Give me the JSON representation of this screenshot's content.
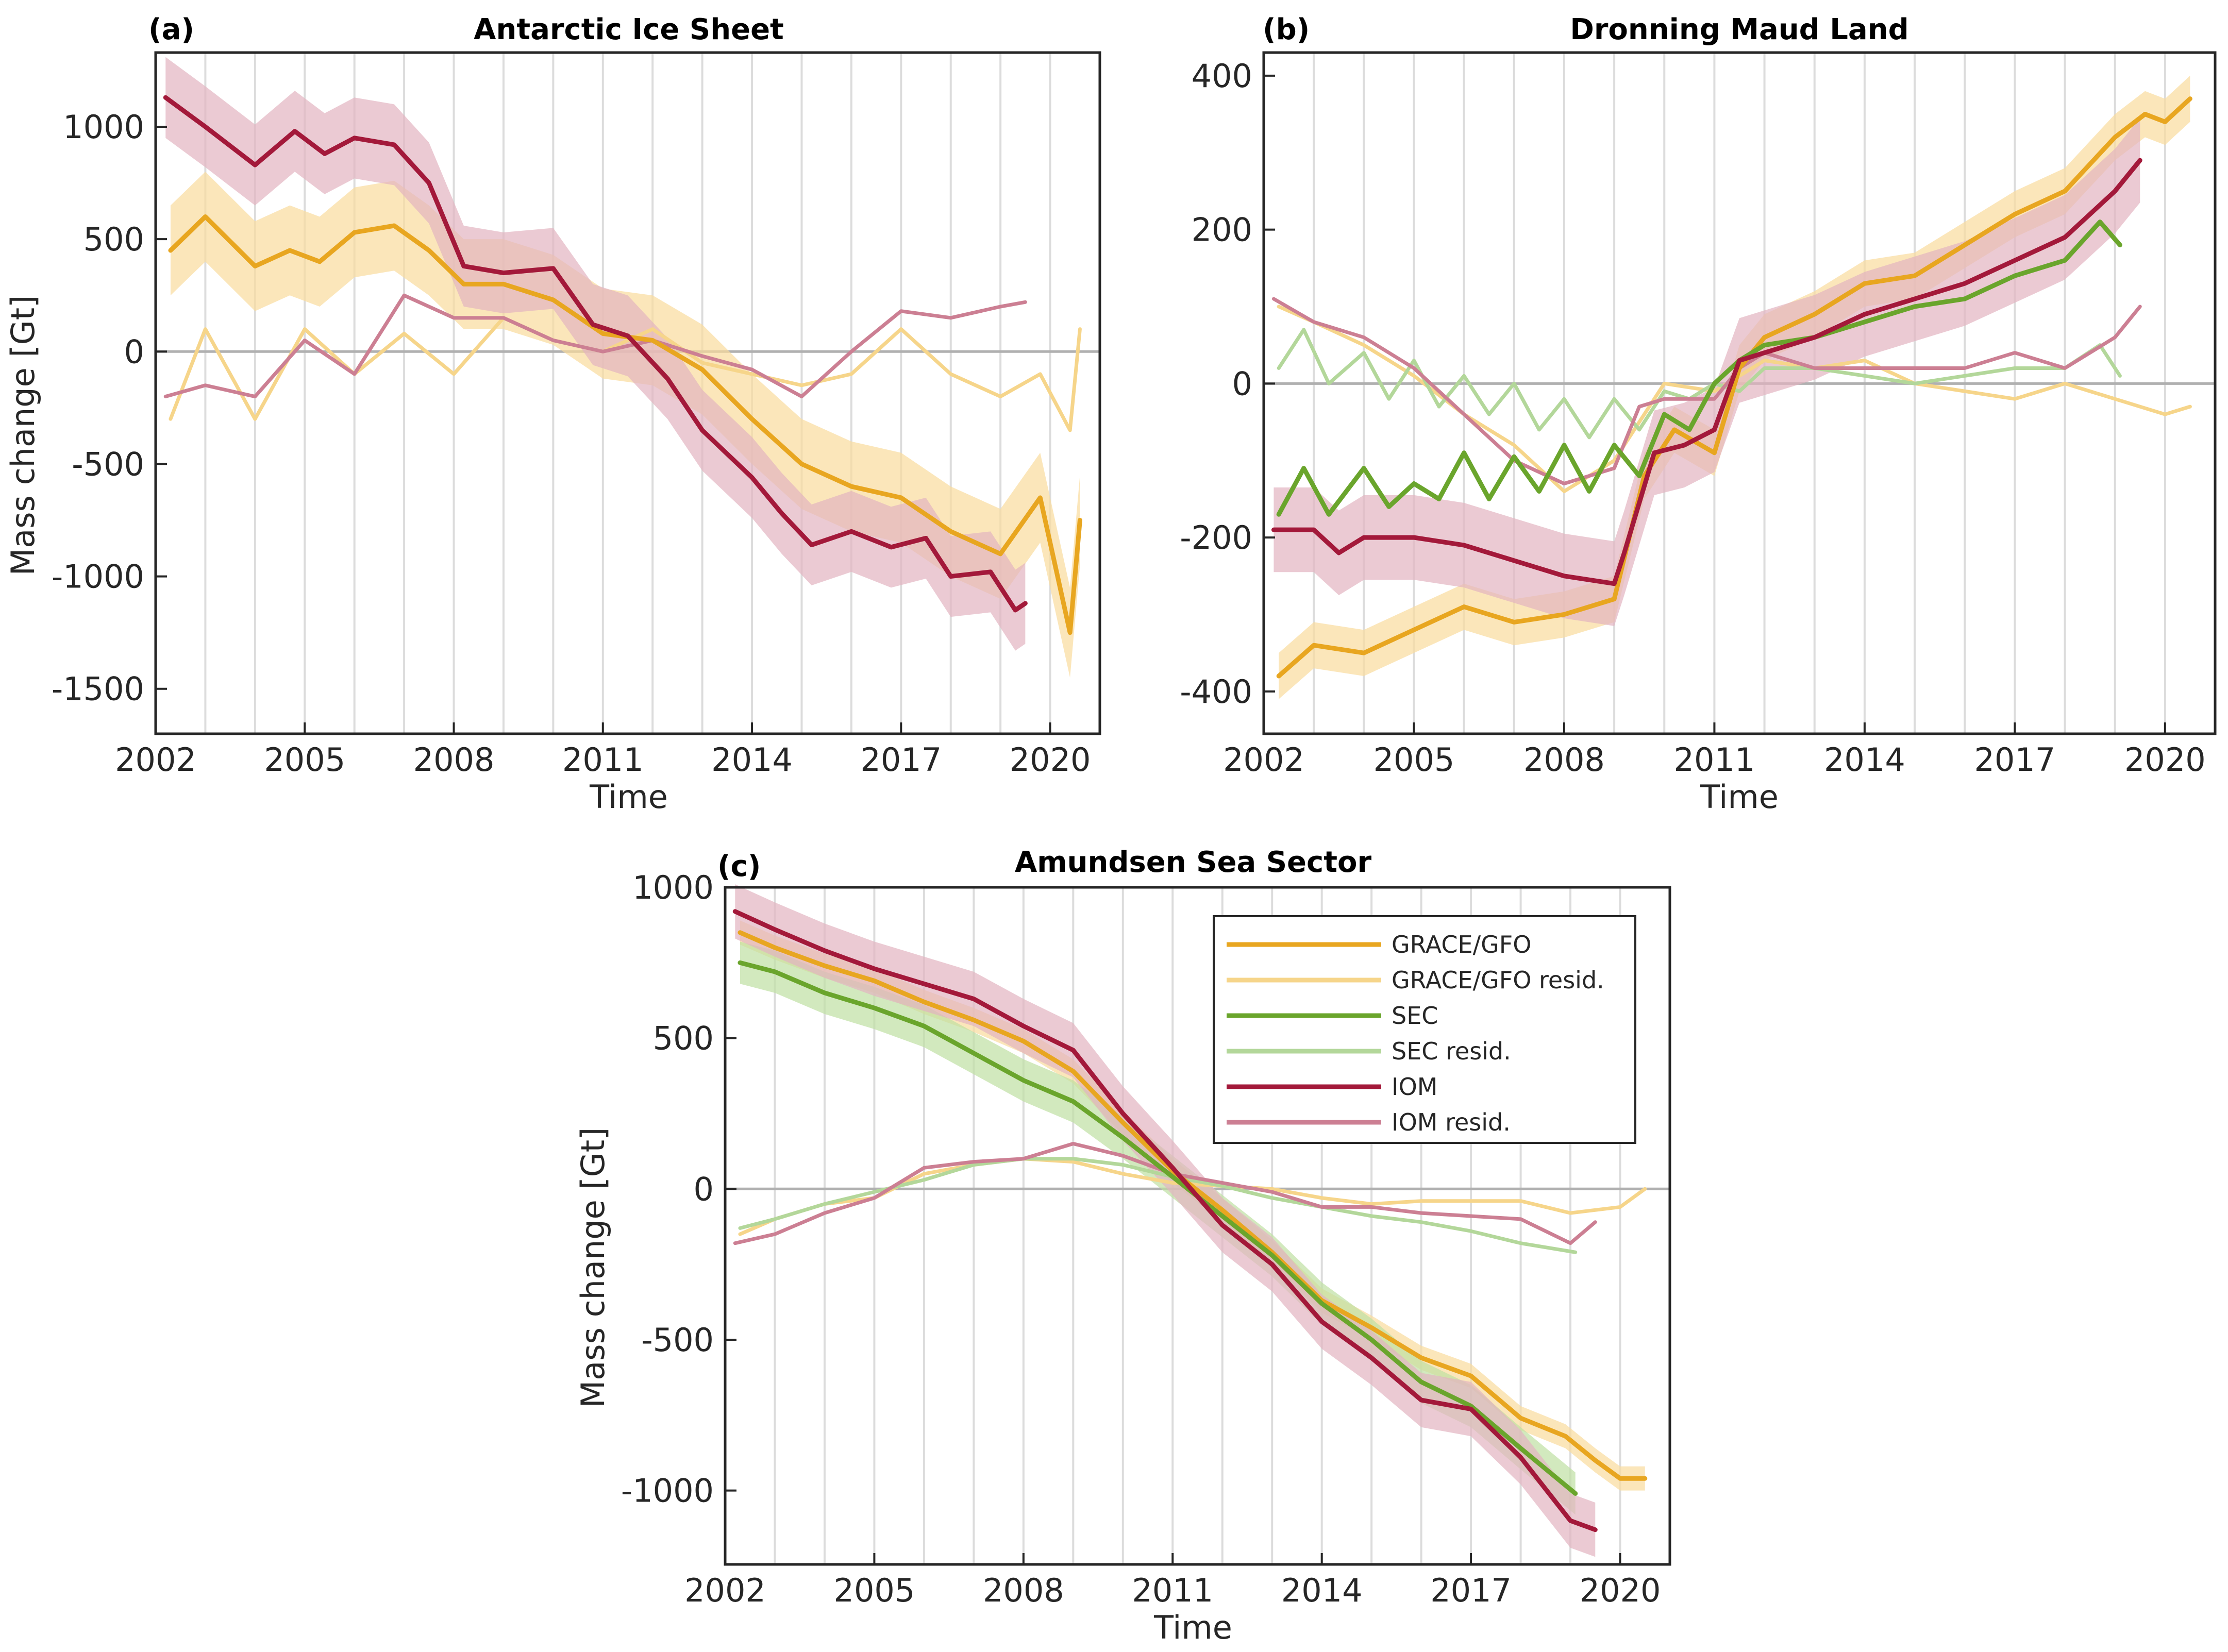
{
  "colors": {
    "grace": "#e8a620",
    "grace_resid": "#f6d58a",
    "grace_band": "#f9dc9c",
    "sec": "#6aa52c",
    "sec_resid": "#b3d79a",
    "sec_band": "#bfe0a3",
    "iom": "#a3193a",
    "iom_resid": "#cc7f93",
    "iom_band": "#e2b3c1",
    "zero": "#b0b0b0",
    "vgrid": "#dcdcdc",
    "axis": "#262626"
  },
  "chart_data": [
    {
      "id": "a",
      "type": "line",
      "tag": "(a)",
      "title": "Antarctic Ice Sheet",
      "xlabel": "Time",
      "ylabel": "Mass change [Gt]",
      "xlim": [
        2002,
        2021
      ],
      "ylim": [
        -1700,
        1330
      ],
      "xticks": [
        2002,
        2005,
        2008,
        2011,
        2014,
        2017,
        2020
      ],
      "yticks": [
        1000,
        500,
        0,
        -500,
        -1000,
        -1500
      ],
      "grid": "vertical",
      "series": [
        {
          "name": "GRACE/GFO",
          "color_key": "grace",
          "band": 200,
          "band_color_key": "grace_band",
          "x": [
            2002.3,
            2003,
            2004,
            2004.7,
            2005.3,
            2006,
            2006.8,
            2007.5,
            2008.2,
            2009,
            2010,
            2011,
            2012,
            2013,
            2014,
            2015,
            2016,
            2017,
            2018,
            2019,
            2019.8,
            2020.4,
            2020.6
          ],
          "y": [
            450,
            600,
            380,
            450,
            400,
            530,
            560,
            450,
            300,
            300,
            230,
            80,
            50,
            -80,
            -300,
            -500,
            -600,
            -650,
            -800,
            -900,
            -650,
            -1250,
            -750
          ]
        },
        {
          "name": "GRACE/GFO resid.",
          "color_key": "grace_resid",
          "x": [
            2002.3,
            2003,
            2004,
            2005,
            2006,
            2007,
            2008,
            2009,
            2010,
            2011,
            2012,
            2013,
            2014,
            2015,
            2016,
            2017,
            2018,
            2019,
            2019.8,
            2020.4,
            2020.6
          ],
          "y": [
            -300,
            100,
            -300,
            100,
            -100,
            80,
            -100,
            150,
            50,
            0,
            100,
            -50,
            -100,
            -150,
            -100,
            100,
            -100,
            -200,
            -100,
            -350,
            100
          ]
        },
        {
          "name": "IOM",
          "color_key": "iom",
          "band": 180,
          "band_color_key": "iom_band",
          "x": [
            2002.2,
            2003,
            2004,
            2004.8,
            2005.4,
            2006,
            2006.8,
            2007.5,
            2008.2,
            2009,
            2010,
            2010.8,
            2011.5,
            2012.3,
            2013,
            2014,
            2014.6,
            2015.2,
            2016,
            2016.8,
            2017.5,
            2018,
            2018.8,
            2019.3,
            2019.5
          ],
          "y": [
            1130,
            1000,
            830,
            980,
            880,
            950,
            920,
            750,
            380,
            350,
            370,
            120,
            70,
            -120,
            -350,
            -560,
            -720,
            -860,
            -800,
            -870,
            -830,
            -1000,
            -980,
            -1150,
            -1120
          ]
        },
        {
          "name": "IOM resid.",
          "color_key": "iom_resid",
          "x": [
            2002.2,
            2003,
            2004,
            2005,
            2006,
            2007,
            2008,
            2009,
            2010,
            2011,
            2012,
            2013,
            2014,
            2015,
            2016,
            2017,
            2018,
            2019,
            2019.5
          ],
          "y": [
            -200,
            -150,
            -200,
            50,
            -100,
            250,
            150,
            150,
            50,
            0,
            50,
            -20,
            -80,
            -200,
            0,
            180,
            150,
            200,
            220
          ]
        }
      ]
    },
    {
      "id": "b",
      "type": "line",
      "tag": "(b)",
      "title": "Dronning Maud Land",
      "xlabel": "Time",
      "ylabel": "",
      "xlim": [
        2002,
        2021
      ],
      "ylim": [
        -455,
        430
      ],
      "xticks": [
        2002,
        2005,
        2008,
        2011,
        2014,
        2017,
        2020
      ],
      "yticks": [
        400,
        200,
        0,
        -200,
        -400
      ],
      "grid": "vertical",
      "series": [
        {
          "name": "GRACE/GFO",
          "color_key": "grace",
          "band": 30,
          "band_color_key": "grace_band",
          "x": [
            2002.3,
            2003,
            2004,
            2005,
            2006,
            2007,
            2008,
            2009,
            2009.6,
            2010.2,
            2011,
            2011.5,
            2012,
            2013,
            2014,
            2015,
            2016,
            2017,
            2018,
            2019,
            2019.6,
            2020,
            2020.5
          ],
          "y": [
            -380,
            -340,
            -350,
            -320,
            -290,
            -310,
            -300,
            -280,
            -120,
            -60,
            -90,
            20,
            60,
            90,
            130,
            140,
            180,
            220,
            250,
            320,
            350,
            340,
            370
          ]
        },
        {
          "name": "GRACE/GFO resid.",
          "color_key": "grace_resid",
          "x": [
            2002.3,
            2003,
            2004,
            2005,
            2006,
            2007,
            2008,
            2009,
            2010,
            2011,
            2012,
            2013,
            2014,
            2015,
            2016,
            2017,
            2018,
            2019,
            2020,
            2020.5
          ],
          "y": [
            100,
            80,
            50,
            10,
            -40,
            -80,
            -140,
            -100,
            0,
            -10,
            30,
            20,
            30,
            0,
            -10,
            -20,
            0,
            -20,
            -40,
            -30
          ]
        },
        {
          "name": "SEC",
          "color_key": "sec",
          "x": [
            2002.3,
            2002.8,
            2003.3,
            2004,
            2004.5,
            2005,
            2005.5,
            2006,
            2006.5,
            2007,
            2007.5,
            2008,
            2008.5,
            2009,
            2009.5,
            2010,
            2010.5,
            2011,
            2011.5,
            2012,
            2013,
            2014,
            2015,
            2016,
            2017,
            2018,
            2018.7,
            2019.1
          ],
          "y": [
            -170,
            -110,
            -170,
            -110,
            -160,
            -130,
            -150,
            -90,
            -150,
            -95,
            -140,
            -80,
            -140,
            -80,
            -120,
            -40,
            -60,
            0,
            30,
            50,
            60,
            80,
            100,
            110,
            140,
            160,
            210,
            180
          ]
        },
        {
          "name": "SEC resid.",
          "color_key": "sec_resid",
          "x": [
            2002.3,
            2002.8,
            2003.3,
            2004,
            2004.5,
            2005,
            2005.5,
            2006,
            2006.5,
            2007,
            2007.5,
            2008,
            2008.5,
            2009,
            2009.5,
            2010,
            2010.5,
            2011,
            2011.5,
            2012,
            2013,
            2014,
            2015,
            2016,
            2017,
            2018,
            2018.7,
            2019.1
          ],
          "y": [
            20,
            70,
            0,
            40,
            -20,
            30,
            -30,
            10,
            -40,
            0,
            -60,
            -20,
            -70,
            -20,
            -60,
            -10,
            -20,
            0,
            -10,
            20,
            20,
            10,
            0,
            10,
            20,
            20,
            50,
            10
          ]
        },
        {
          "name": "IOM",
          "color_key": "iom",
          "band": 55,
          "band_color_key": "iom_band",
          "x": [
            2002.2,
            2003,
            2003.5,
            2004,
            2005,
            2006,
            2007,
            2008,
            2009,
            2009.2,
            2009.8,
            2010.4,
            2011,
            2011.5,
            2012,
            2013,
            2014,
            2015,
            2016,
            2017,
            2018,
            2019,
            2019.5
          ],
          "y": [
            -190,
            -190,
            -220,
            -200,
            -200,
            -210,
            -230,
            -250,
            -260,
            -220,
            -90,
            -80,
            -60,
            30,
            40,
            60,
            90,
            110,
            130,
            160,
            190,
            250,
            290
          ]
        },
        {
          "name": "IOM resid.",
          "color_key": "iom_resid",
          "x": [
            2002.2,
            2003,
            2004,
            2005,
            2006,
            2007,
            2008,
            2009,
            2009.5,
            2010,
            2010.5,
            2011,
            2011.5,
            2012,
            2013,
            2014,
            2015,
            2016,
            2017,
            2018,
            2019,
            2019.5
          ],
          "y": [
            110,
            80,
            60,
            20,
            -40,
            -100,
            -130,
            -110,
            -30,
            -20,
            -20,
            -20,
            20,
            40,
            20,
            20,
            20,
            20,
            40,
            20,
            60,
            100
          ]
        }
      ]
    },
    {
      "id": "c",
      "type": "line",
      "tag": "(c)",
      "title": "Amundsen Sea Sector",
      "xlabel": "Time",
      "ylabel": "Mass change [Gt]",
      "xlim": [
        2002,
        2021
      ],
      "ylim": [
        -1245,
        1000
      ],
      "xticks": [
        2002,
        2005,
        2008,
        2011,
        2014,
        2017,
        2020
      ],
      "yticks": [
        1000,
        500,
        0,
        -500,
        -1000
      ],
      "grid": "vertical",
      "legend": "top-right",
      "series": [
        {
          "name": "GRACE/GFO",
          "color_key": "grace",
          "band": 40,
          "band_color_key": "grace_band",
          "x": [
            2002.3,
            2003,
            2004,
            2005,
            2006,
            2007,
            2008,
            2009,
            2010,
            2011,
            2012,
            2013,
            2014,
            2015,
            2016,
            2017,
            2018,
            2018.9,
            2019.5,
            2020,
            2020.5
          ],
          "y": [
            850,
            800,
            740,
            690,
            620,
            560,
            490,
            390,
            220,
            60,
            -70,
            -210,
            -370,
            -460,
            -560,
            -620,
            -760,
            -820,
            -900,
            -960,
            -960
          ]
        },
        {
          "name": "GRACE/GFO resid.",
          "color_key": "grace_resid",
          "x": [
            2002.3,
            2003,
            2004,
            2005,
            2006,
            2007,
            2008,
            2009,
            2010,
            2011,
            2012,
            2013,
            2014,
            2015,
            2016,
            2017,
            2018,
            2019,
            2020,
            2020.5
          ],
          "y": [
            -150,
            -100,
            -50,
            -30,
            50,
            80,
            100,
            90,
            50,
            20,
            10,
            0,
            -30,
            -50,
            -40,
            -40,
            -40,
            -80,
            -60,
            0
          ]
        },
        {
          "name": "SEC",
          "color_key": "sec",
          "band": 70,
          "band_color_key": "sec_band",
          "x": [
            2002.3,
            2003,
            2004,
            2005,
            2006,
            2007,
            2008,
            2009,
            2010,
            2011,
            2012,
            2013,
            2014,
            2015,
            2016,
            2017,
            2018,
            2019.1
          ],
          "y": [
            750,
            720,
            650,
            600,
            540,
            450,
            360,
            290,
            170,
            40,
            -90,
            -220,
            -380,
            -500,
            -640,
            -720,
            -860,
            -1010
          ]
        },
        {
          "name": "SEC resid.",
          "color_key": "sec_resid",
          "x": [
            2002.3,
            2003,
            2004,
            2005,
            2006,
            2007,
            2008,
            2009,
            2010,
            2011,
            2012,
            2013,
            2014,
            2015,
            2016,
            2017,
            2018,
            2019.1
          ],
          "y": [
            -130,
            -100,
            -50,
            -10,
            30,
            80,
            100,
            100,
            80,
            40,
            10,
            -30,
            -60,
            -90,
            -110,
            -140,
            -180,
            -210
          ]
        },
        {
          "name": "IOM",
          "color_key": "iom",
          "band": 90,
          "band_color_key": "iom_band",
          "x": [
            2002.2,
            2003,
            2004,
            2005,
            2006,
            2007,
            2008,
            2009,
            2010,
            2011,
            2012,
            2013,
            2014,
            2015,
            2016,
            2017,
            2018,
            2019,
            2019.5
          ],
          "y": [
            920,
            860,
            790,
            730,
            680,
            630,
            540,
            460,
            250,
            70,
            -120,
            -250,
            -440,
            -560,
            -700,
            -730,
            -890,
            -1100,
            -1130
          ]
        },
        {
          "name": "IOM resid.",
          "color_key": "iom_resid",
          "x": [
            2002.2,
            2003,
            2004,
            2005,
            2006,
            2007,
            2008,
            2009,
            2010,
            2011,
            2012,
            2013,
            2014,
            2015,
            2016,
            2017,
            2018,
            2019,
            2019.5
          ],
          "y": [
            -180,
            -150,
            -80,
            -30,
            70,
            90,
            100,
            150,
            110,
            50,
            20,
            -10,
            -60,
            -60,
            -80,
            -90,
            -100,
            -180,
            -110
          ]
        }
      ]
    }
  ]
}
